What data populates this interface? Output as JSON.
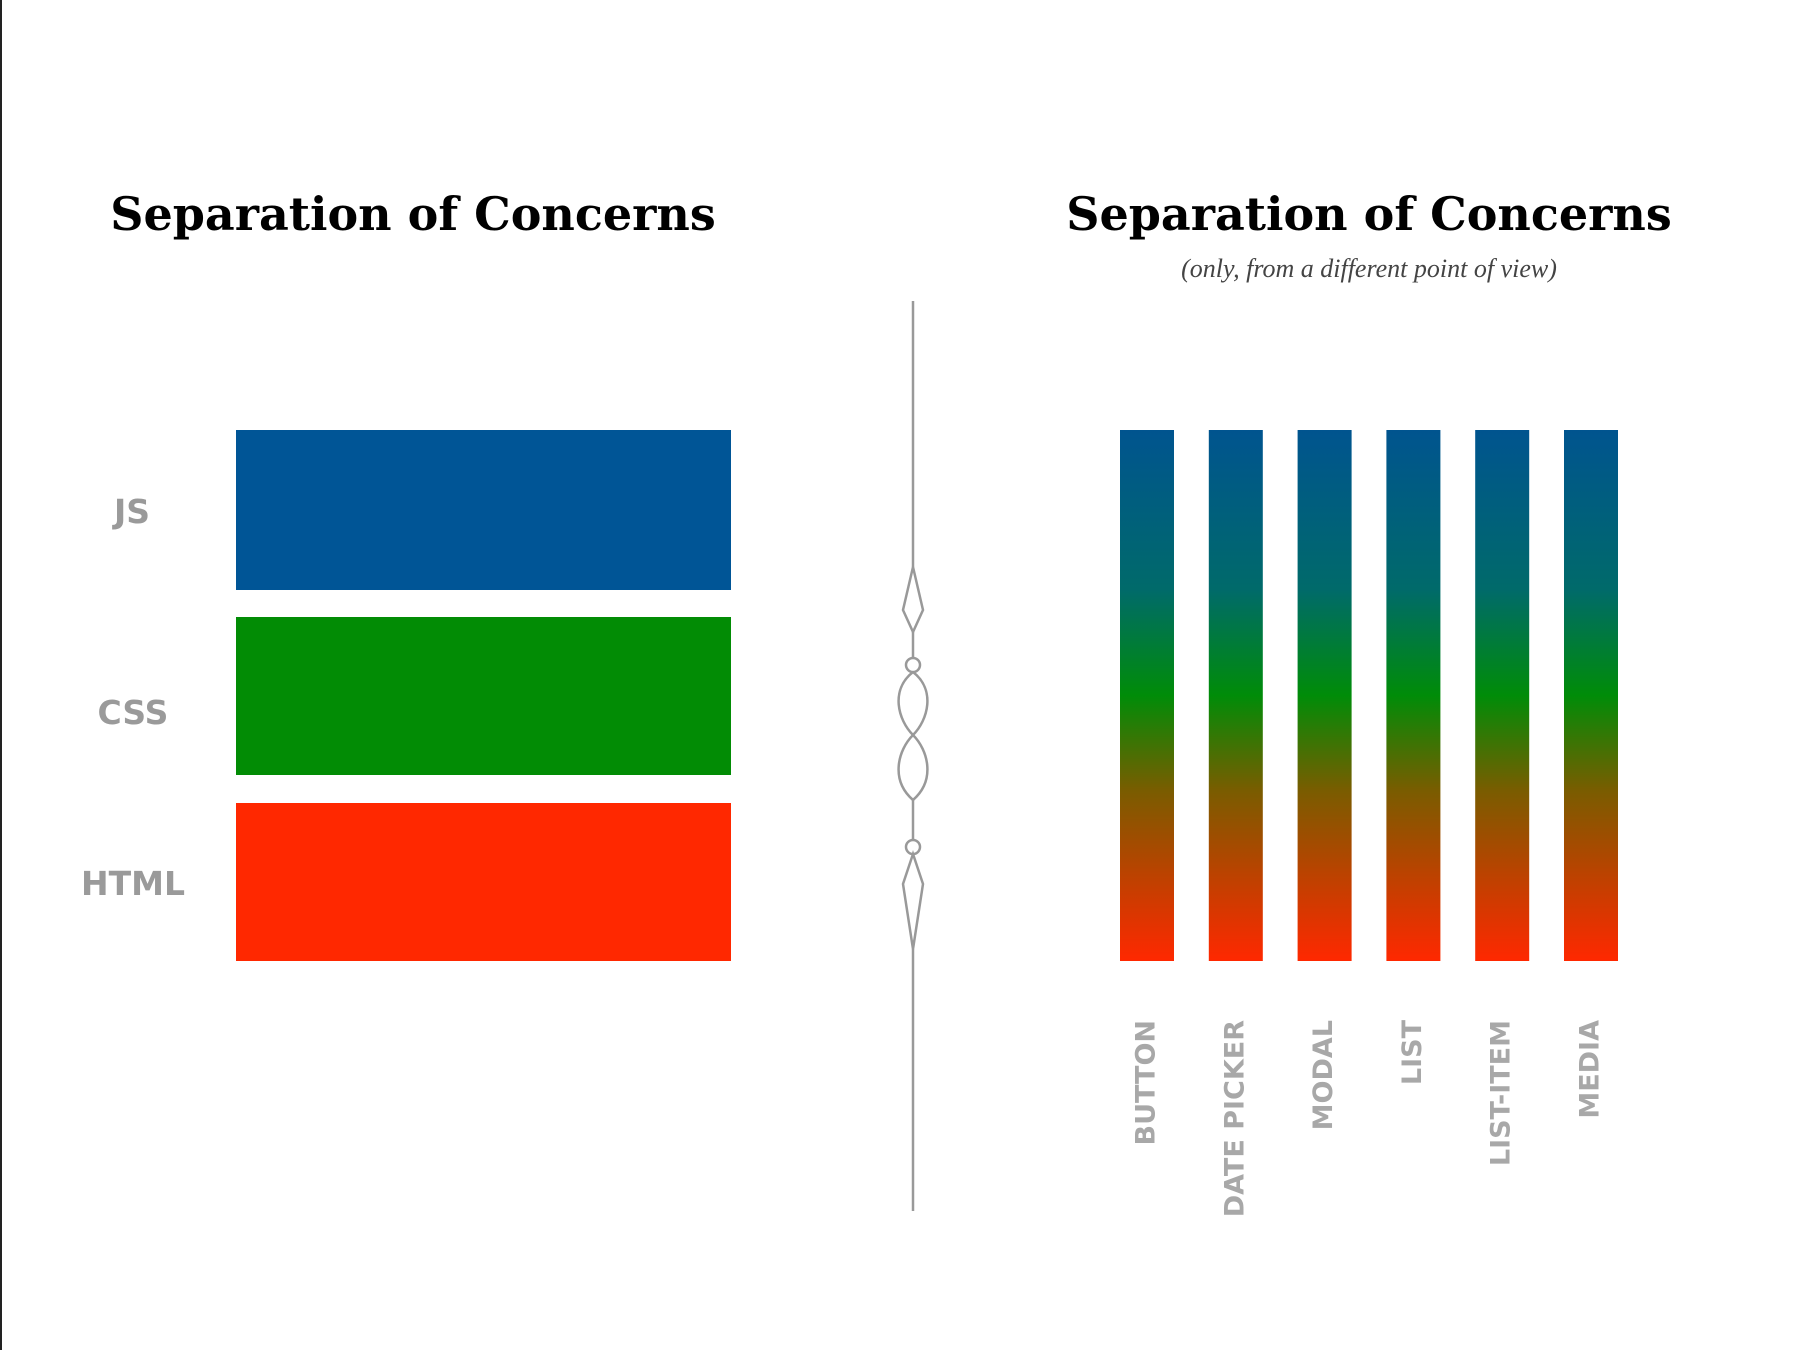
{
  "left": {
    "title": "Separation of Concerns",
    "layers": [
      "JS",
      "CSS",
      "HTML"
    ]
  },
  "right": {
    "title": "Separation of Concerns",
    "subtitle": "(only, from a different point of view)",
    "components": [
      "BUTTON",
      "DATE PICKER",
      "MODAL",
      "LIST",
      "LIST-ITEM",
      "MEDIA"
    ]
  }
}
